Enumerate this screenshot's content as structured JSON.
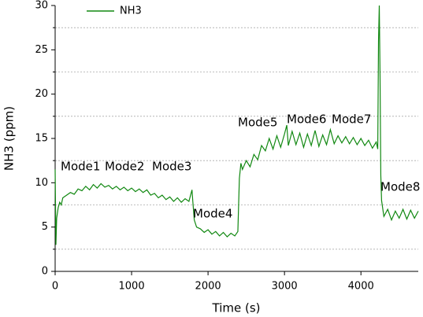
{
  "chart_data": {
    "type": "line",
    "x_label": "Time (s)",
    "y_label": "NH3 (ppm)",
    "xlim": [
      0,
      4750
    ],
    "ylim": [
      0,
      30
    ],
    "xticks": [
      0,
      1000,
      2000,
      3000,
      4000
    ],
    "yticks": [
      0,
      5,
      10,
      15,
      20,
      25,
      30
    ],
    "minor_grid_y": [
      2.5,
      7.5,
      12.5,
      17.5,
      22.5,
      27.5
    ],
    "legend": "upper-left",
    "annotations": [
      "Mode1",
      "Mode2",
      "Mode3",
      "Mode4",
      "Mode5",
      "Mode6",
      "Mode7",
      "Mode8"
    ],
    "x": [
      0,
      10,
      20,
      40,
      60,
      80,
      100,
      150,
      200,
      250,
      300,
      350,
      400,
      450,
      500,
      550,
      600,
      650,
      700,
      750,
      800,
      850,
      900,
      950,
      1000,
      1050,
      1100,
      1150,
      1200,
      1250,
      1300,
      1350,
      1400,
      1450,
      1500,
      1550,
      1600,
      1650,
      1700,
      1750,
      1790,
      1800,
      1820,
      1850,
      1900,
      1950,
      2000,
      2050,
      2100,
      2150,
      2200,
      2250,
      2300,
      2350,
      2390,
      2410,
      2430,
      2450,
      2500,
      2550,
      2600,
      2650,
      2700,
      2750,
      2800,
      2850,
      2900,
      2950,
      3000,
      3030,
      3050,
      3100,
      3150,
      3200,
      3250,
      3300,
      3350,
      3400,
      3450,
      3500,
      3550,
      3600,
      3650,
      3700,
      3750,
      3800,
      3850,
      3900,
      3950,
      4000,
      4050,
      4100,
      4150,
      4200,
      4220,
      4230,
      4240,
      4250,
      4260,
      4270,
      4300,
      4350,
      4400,
      4450,
      4500,
      4550,
      4600,
      4650,
      4700,
      4750
    ],
    "series": [
      {
        "name": "NH3",
        "color": "#118811",
        "values": [
          11.5,
          3,
          6,
          7.2,
          7.8,
          7.5,
          8.3,
          8.6,
          8.9,
          8.7,
          9.3,
          9.1,
          9.6,
          9.2,
          9.8,
          9.4,
          9.9,
          9.5,
          9.7,
          9.3,
          9.6,
          9.2,
          9.5,
          9.1,
          9.4,
          9.0,
          9.3,
          8.9,
          9.2,
          8.6,
          8.8,
          8.3,
          8.6,
          8.1,
          8.4,
          7.9,
          8.3,
          7.8,
          8.2,
          7.9,
          9.2,
          8.0,
          5.8,
          5.0,
          4.8,
          4.4,
          4.7,
          4.2,
          4.5,
          4.0,
          4.4,
          3.9,
          4.3,
          4.0,
          4.5,
          10.5,
          12.2,
          11.5,
          12.5,
          11.8,
          13.2,
          12.6,
          14.2,
          13.6,
          15.0,
          13.8,
          15.3,
          14.0,
          15.5,
          16.5,
          14.2,
          15.8,
          14.3,
          15.6,
          14.0,
          15.5,
          14.2,
          15.9,
          14.1,
          15.4,
          14.3,
          16.0,
          14.4,
          15.3,
          14.5,
          15.2,
          14.4,
          15.1,
          14.3,
          15.0,
          14.2,
          14.8,
          13.9,
          14.6,
          13.8,
          26,
          30,
          22,
          10.8,
          8,
          6.2,
          7,
          5.8,
          6.8,
          6.0,
          7.0,
          5.9,
          6.9,
          6.0,
          6.8
        ]
      }
    ]
  }
}
